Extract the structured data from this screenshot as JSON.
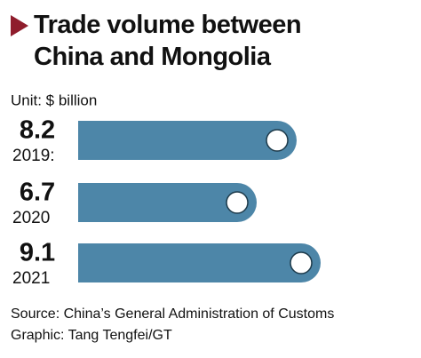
{
  "chart_data": {
    "type": "bar",
    "orientation": "horizontal",
    "title": "Trade volume between China and Mongolia",
    "unit": "Unit: $ billion",
    "categories": [
      "2019:",
      "2020",
      "2021"
    ],
    "values": [
      8.2,
      6.7,
      9.1
    ],
    "color": "#4d86a8",
    "title_marker_color": "#8f1d2c",
    "source": "Source: China’s General Administration of Customs",
    "credit": "Graphic: Tang Tengfei/GT"
  }
}
